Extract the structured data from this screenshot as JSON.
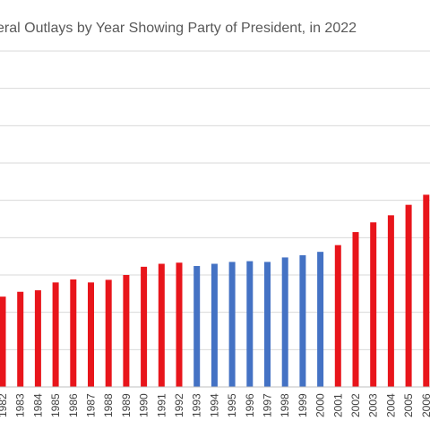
{
  "chart_data": {
    "type": "bar",
    "title": "eral Outlays by Year Showing Party of President, in 2022",
    "xlabel": "",
    "ylabel": "",
    "grid": true,
    "legend": "none",
    "ylim": [
      0,
      9
    ],
    "colors": {
      "republican": "#e8151b",
      "democrat": "#4472c4"
    },
    "categories": [
      "1982",
      "1983",
      "1984",
      "1985",
      "1986",
      "1987",
      "1988",
      "1989",
      "1990",
      "1991",
      "1992",
      "1993",
      "1994",
      "1995",
      "1996",
      "1997",
      "1998",
      "1999",
      "2000",
      "2001",
      "2002",
      "2003",
      "2004",
      "2005",
      "2006"
    ],
    "values": [
      2.42,
      2.55,
      2.59,
      2.8,
      2.88,
      2.8,
      2.87,
      3.0,
      3.22,
      3.3,
      3.33,
      3.24,
      3.3,
      3.35,
      3.37,
      3.35,
      3.47,
      3.53,
      3.62,
      3.8,
      4.15,
      4.41,
      4.6,
      4.88,
      5.15
    ],
    "parties": [
      "R",
      "R",
      "R",
      "R",
      "R",
      "R",
      "R",
      "R",
      "R",
      "R",
      "R",
      "D",
      "D",
      "D",
      "D",
      "D",
      "D",
      "D",
      "D",
      "R",
      "R",
      "R",
      "R",
      "R",
      "R"
    ]
  }
}
